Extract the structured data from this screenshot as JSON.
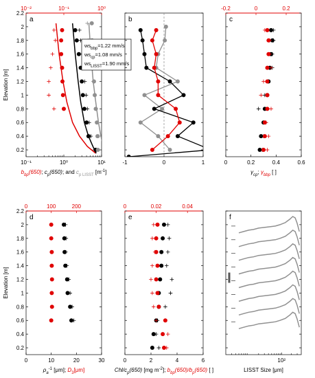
{
  "figure": {
    "y_label": "Elevation [m]",
    "elev_ticks": [
      "0.2",
      "0.4",
      "0.6",
      "0.8",
      "1",
      "1.2",
      "1.4",
      "1.6",
      "1.8",
      "2",
      "2.2"
    ],
    "colors": {
      "black": "#000000",
      "red": "#e00000",
      "gray": "#909090"
    }
  },
  "chart_data": [
    {
      "id": "a",
      "letter": "a",
      "type": "scatter",
      "x_scale": "log",
      "xlim": [
        0.1,
        10
      ],
      "ylim": [
        0.1,
        2.2
      ],
      "xticks": [
        0.1,
        1,
        10
      ],
      "xtick_labels": [
        "10⁻¹",
        "10⁰",
        "10¹"
      ],
      "top_xlim": [
        0.01,
        1
      ],
      "top_xticks": [
        0.01,
        0.1,
        1
      ],
      "top_xtick_labels": [
        "10⁻²",
        "10⁻¹",
        "10⁰"
      ],
      "xlabel": {
        "parts": [
          {
            "t": "b",
            "c": "red",
            "i": true
          },
          {
            "t": "bp",
            "c": "red",
            "i": true,
            "sub": true
          },
          {
            "t": "(650)",
            "c": "red",
            "i": true
          },
          {
            "t": "; ",
            "c": "black"
          },
          {
            "t": "c",
            "c": "black",
            "i": true
          },
          {
            "t": "p",
            "c": "black",
            "i": true,
            "sub": true
          },
          {
            "t": "(650)",
            "c": "black",
            "i": true
          },
          {
            "t": "; and ",
            "c": "black"
          },
          {
            "t": "c",
            "c": "gray",
            "i": true
          },
          {
            "t": "p LISST",
            "c": "gray",
            "sub": true
          },
          {
            "t": " [m",
            "c": "black"
          },
          {
            "t": "-1",
            "c": "black",
            "sup": true
          },
          {
            "t": "]",
            "c": "black"
          }
        ]
      },
      "legend_box": [
        "ws_bbp=1.22 mm/s",
        "ws_cp=1.08 mm/s",
        "ws_LISST=1.90 mm/s"
      ],
      "legend_parts": [
        [
          {
            "t": "ws"
          },
          {
            "t": "bbp",
            "sub": true
          },
          {
            "t": "=1.22 mm/s"
          }
        ],
        [
          {
            "t": "ws"
          },
          {
            "t": "cp",
            "sub": true
          },
          {
            "t": "=1.08 mm/s"
          }
        ],
        [
          {
            "t": "ws"
          },
          {
            "t": "LISST",
            "sub": true
          },
          {
            "t": "=1.90 mm/s"
          }
        ]
      ],
      "series": [
        {
          "color": "red",
          "marker": "dot",
          "y": [
            1.95,
            1.8,
            1.6,
            1.4,
            1.2,
            1.0,
            0.8
          ],
          "x": [
            0.9,
            0.85,
            0.85,
            0.9,
            0.92,
            0.95,
            1.0
          ]
        },
        {
          "color": "red",
          "marker": "plus",
          "y": [
            1.95,
            1.8,
            1.6,
            1.4,
            1.2,
            1.0,
            0.8
          ],
          "x": [
            0.55,
            0.6,
            0.5,
            0.45,
            0.4,
            0.4,
            0.55
          ]
        },
        {
          "color": "black",
          "marker": "dot",
          "y": [
            1.95,
            1.8,
            1.6,
            1.4,
            1.2,
            1.0,
            0.8,
            0.6,
            0.4,
            0.2
          ],
          "x": [
            2.0,
            2.2,
            2.5,
            2.8,
            3.0,
            3.2,
            3.5,
            4.0,
            4.5,
            7.0
          ]
        },
        {
          "color": "black",
          "marker": "plus",
          "y": [
            1.95,
            1.8,
            1.6,
            1.4,
            1.2,
            1.0,
            0.8,
            0.6,
            0.4,
            0.2
          ],
          "x": [
            2.6,
            2.8,
            3.0,
            3.4,
            3.6,
            3.9,
            4.2,
            4.7,
            5.2,
            6.6
          ]
        },
        {
          "color": "gray",
          "marker": "dot",
          "y": [
            2.05,
            1.8,
            1.6,
            1.4,
            1.2,
            1.0,
            0.8,
            0.6,
            0.4,
            0.2
          ],
          "x": [
            5.5,
            5.6,
            5.8,
            6.0,
            6.3,
            6.6,
            7.0,
            7.5,
            7.8,
            8.0
          ]
        },
        {
          "color": "gray",
          "marker": "plus",
          "y": [
            2.05,
            1.8,
            1.6,
            1.4,
            1.2,
            1.0,
            0.8,
            0.6,
            0.4
          ],
          "x": [
            4.2,
            4.4,
            5.0,
            5.4,
            6.0,
            6.6,
            7.2,
            7.8,
            8.5
          ]
        },
        {
          "color": "red",
          "marker": "line",
          "y": [
            2.05,
            1.6,
            1.2,
            0.9,
            0.6,
            0.4,
            0.25,
            0.15
          ],
          "x": [
            0.62,
            0.75,
            0.95,
            1.2,
            1.7,
            2.6,
            4.2,
            7.0
          ]
        },
        {
          "color": "black",
          "marker": "line",
          "y": [
            2.05,
            1.6,
            1.2,
            0.9,
            0.6,
            0.4,
            0.25,
            0.15
          ],
          "x": [
            1.7,
            2.0,
            2.4,
            2.8,
            3.5,
            4.5,
            5.9,
            7.2
          ]
        },
        {
          "color": "gray",
          "marker": "line",
          "y": [
            2.05,
            1.6,
            1.2,
            0.9,
            0.6,
            0.4,
            0.25,
            0.15
          ],
          "x": [
            4.6,
            5.2,
            6.0,
            7.0,
            8.3,
            9.6,
            11.0,
            12.5
          ]
        }
      ]
    },
    {
      "id": "b",
      "letter": "b",
      "type": "line",
      "x_scale": "linear",
      "xlim": [
        -1,
        1
      ],
      "ylim": [
        0.1,
        2.2
      ],
      "xticks": [
        -1,
        0,
        1
      ],
      "xtick_labels": [
        "-1",
        "0",
        "1"
      ],
      "vline": 0,
      "series": [
        {
          "color": "gray",
          "marker": "dot-line",
          "y": [
            2.0,
            1.8,
            1.6,
            1.4,
            1.2,
            1.0,
            0.8,
            0.6,
            0.4,
            0.2
          ],
          "x": [
            0.05,
            0.02,
            -0.15,
            -0.2,
            0.35,
            -0.5,
            -0.05,
            -0.6,
            -0.15,
            0.15
          ]
        },
        {
          "color": "black",
          "marker": "dot-line",
          "y": [
            1.95,
            1.8,
            1.6,
            1.4,
            1.2,
            1.0,
            0.8,
            0.6,
            0.4,
            0.2,
            0.1
          ],
          "x": [
            -0.6,
            -0.55,
            -0.5,
            -0.45,
            0.15,
            0.5,
            -0.25,
            0.75,
            0.35,
            1.2,
            -0.9
          ]
        },
        {
          "color": "red",
          "marker": "dot-line",
          "y": [
            1.95,
            1.8,
            1.6,
            1.4,
            1.2,
            1.0,
            0.8,
            0.6,
            0.4,
            0.2
          ],
          "x": [
            -0.2,
            -0.3,
            -0.2,
            -0.25,
            -0.15,
            -0.15,
            0.3,
            0.4,
            0.1,
            -0.3
          ]
        }
      ]
    },
    {
      "id": "c",
      "letter": "c",
      "type": "scatter",
      "x_scale": "linear",
      "xlim": [
        0,
        0.6
      ],
      "ylim": [
        0.1,
        2.2
      ],
      "xticks": [
        0,
        0.2,
        0.4,
        0.6
      ],
      "xtick_labels": [
        "0",
        "0.2",
        "0.4",
        "0.6"
      ],
      "top_xlim": [
        -0.2,
        0.3
      ],
      "top_xticks": [
        -0.2,
        0,
        0.2
      ],
      "top_xtick_labels": [
        "-0.2",
        "0",
        "0.2"
      ],
      "xlabel": {
        "parts": [
          {
            "t": "γ",
            "c": "black",
            "i": true
          },
          {
            "t": "cp",
            "c": "black",
            "i": true,
            "sub": true
          },
          {
            "t": "; ",
            "c": "black"
          },
          {
            "t": "γ",
            "c": "red",
            "i": true
          },
          {
            "t": "bbp",
            "c": "red",
            "i": true,
            "sub": true
          },
          {
            "t": " [ ]",
            "c": "black"
          }
        ]
      },
      "series": [
        {
          "color": "black",
          "marker": "dot",
          "y": [
            1.95,
            1.8,
            1.6,
            1.4,
            1.2,
            1.0,
            0.8,
            0.6,
            0.4,
            0.2
          ],
          "x": [
            0.36,
            0.37,
            0.36,
            0.35,
            0.34,
            0.33,
            0.31,
            0.3,
            0.28,
            0.27
          ]
        },
        {
          "color": "black",
          "marker": "plus",
          "y": [
            1.95,
            1.8,
            1.6,
            1.4,
            1.2,
            1.0,
            0.8,
            0.6,
            0.4,
            0.2
          ],
          "x": [
            0.38,
            0.38,
            0.37,
            0.37,
            0.33,
            0.31,
            0.26,
            0.32,
            0.3,
            0.29
          ]
        },
        {
          "color": "red",
          "marker": "dot",
          "y": [
            1.95,
            1.8,
            1.6,
            1.4,
            1.2,
            1.0,
            0.8,
            0.6,
            0.4,
            0.2
          ],
          "x": [
            0.33,
            0.34,
            0.34,
            0.33,
            0.33,
            0.33,
            0.33,
            0.31,
            0.31,
            0.3
          ]
        },
        {
          "color": "red",
          "marker": "plus",
          "y": [
            1.95,
            1.8,
            1.6,
            1.4,
            1.2,
            1.0,
            0.8,
            0.6,
            0.4,
            0.2
          ],
          "x": [
            0.31,
            0.35,
            0.35,
            0.36,
            0.3,
            0.28,
            0.36,
            0.32,
            0.34,
            0.33
          ]
        }
      ]
    },
    {
      "id": "d",
      "letter": "d",
      "type": "scatter",
      "x_scale": "linear",
      "xlim": [
        0,
        30
      ],
      "ylim": [
        0.1,
        2.2
      ],
      "xticks": [
        0,
        10,
        20,
        30
      ],
      "xtick_labels": [
        "0",
        "10",
        "20",
        "30"
      ],
      "top_xlim": [
        0,
        300
      ],
      "top_xticks": [
        0,
        100,
        200
      ],
      "top_xtick_labels": [
        "0",
        "100",
        "200"
      ],
      "xlabel": {
        "parts": [
          {
            "t": "ρ",
            "c": "black",
            "i": true
          },
          {
            "t": "a",
            "c": "black",
            "i": true,
            "sub": true
          },
          {
            "t": "-1",
            "c": "black",
            "sup": true
          },
          {
            "t": " [μm]; ",
            "c": "black"
          },
          {
            "t": "D",
            "c": "red",
            "i": true
          },
          {
            "t": "3",
            "c": "red",
            "sub": true
          },
          {
            "t": "[μm]",
            "c": "red"
          }
        ]
      },
      "series": [
        {
          "color": "red",
          "marker": "dot",
          "y": [
            2.0,
            1.8,
            1.6,
            1.4,
            1.2,
            1.0,
            0.8,
            0.6
          ],
          "x": [
            10.0,
            10.0,
            10.2,
            10.2,
            10.3,
            10.2,
            10.3,
            10.0
          ]
        },
        {
          "color": "black",
          "marker": "dot",
          "y": [
            2.0,
            1.8,
            1.6,
            1.4,
            1.2,
            1.0,
            0.8,
            0.6
          ],
          "x": [
            15.0,
            15.2,
            15.3,
            15.6,
            16.3,
            16.5,
            17.5,
            18.0
          ]
        },
        {
          "color": "black",
          "marker": "plus",
          "y": [
            2.0,
            1.8,
            1.6,
            1.4,
            1.2,
            1.0,
            0.8,
            0.6
          ],
          "x": [
            15.7,
            15.9,
            15.8,
            16.2,
            17.0,
            17.5,
            18.3,
            19.0
          ]
        }
      ]
    },
    {
      "id": "e",
      "letter": "e",
      "type": "scatter",
      "x_scale": "linear",
      "xlim": [
        0,
        6
      ],
      "ylim": [
        0.1,
        2.2
      ],
      "xticks": [
        0,
        2,
        4,
        6
      ],
      "xtick_labels": [
        "0",
        "2",
        "4",
        "6"
      ],
      "top_xlim": [
        0,
        0.05
      ],
      "top_xticks": [
        0,
        0.02,
        0.04
      ],
      "top_xtick_labels": [
        "0",
        "0.02",
        "0.04"
      ],
      "xlabel": {
        "parts": [
          {
            "t": "Chl/c",
            "c": "black",
            "i": true
          },
          {
            "t": "p",
            "c": "black",
            "i": true,
            "sub": true
          },
          {
            "t": "(650)",
            "c": "black",
            "i": true
          },
          {
            "t": " [mg m",
            "c": "black"
          },
          {
            "t": "-2",
            "c": "black",
            "sup": true
          },
          {
            "t": "]; ",
            "c": "black"
          },
          {
            "t": "b",
            "c": "red",
            "i": true
          },
          {
            "t": "bp",
            "c": "red",
            "i": true,
            "sub": true
          },
          {
            "t": "(650)/b",
            "c": "red",
            "i": true
          },
          {
            "t": "p",
            "c": "red",
            "i": true,
            "sub": true
          },
          {
            "t": "(650)",
            "c": "red",
            "i": true
          },
          {
            "t": " [ ]",
            "c": "black"
          }
        ]
      },
      "series": [
        {
          "color": "black",
          "marker": "dot",
          "y": [
            2.0,
            1.8,
            1.6,
            1.4,
            1.2,
            1.0,
            0.8,
            0.6,
            0.4,
            0.2
          ],
          "x": [
            3.0,
            2.9,
            2.8,
            2.8,
            2.7,
            2.6,
            2.6,
            2.4,
            2.2,
            2.1
          ]
        },
        {
          "color": "black",
          "marker": "plus",
          "y": [
            2.0,
            1.8,
            1.6,
            1.4,
            1.2,
            1.0,
            0.8,
            0.6,
            0.4,
            0.2
          ],
          "x": [
            3.3,
            3.4,
            3.3,
            3.2,
            3.6,
            3.5,
            3.1,
            2.5,
            2.4,
            2.6
          ]
        },
        {
          "color": "red",
          "marker": "dot",
          "y": [
            2.0,
            1.8,
            1.6,
            1.4,
            1.2,
            1.0,
            0.8,
            0.6,
            0.4,
            0.2
          ],
          "x": [
            2.5,
            2.4,
            2.4,
            2.5,
            2.4,
            2.5,
            2.6,
            3.1,
            2.9,
            3.0
          ]
        },
        {
          "color": "red",
          "marker": "plus",
          "y": [
            2.0,
            1.8,
            1.6,
            1.4,
            1.2,
            1.0,
            0.8,
            0.6,
            0.4,
            0.2
          ],
          "x": [
            2.2,
            2.1,
            2.3,
            2.1,
            2.0,
            2.1,
            2.2,
            2.4,
            3.3,
            3.2
          ]
        }
      ]
    },
    {
      "id": "f",
      "letter": "f",
      "type": "line",
      "x_scale": "log",
      "xlim": [
        2,
        400
      ],
      "ylim": [
        0.1,
        2.2
      ],
      "xticks": [
        100
      ],
      "xtick_labels": [
        "10²"
      ],
      "xlabel": {
        "parts": [
          {
            "t": "LISST Size [μm]",
            "c": "black"
          }
        ]
      },
      "curve_levels": [
        2.0,
        1.8,
        1.6,
        1.4,
        1.2,
        1.0,
        0.8,
        0.6
      ],
      "scale_bar": {
        "y_range": [
          1.15,
          1.3
        ]
      },
      "curve_shape": {
        "size_um": [
          5,
          7,
          10,
          14,
          20,
          30,
          45,
          65,
          90,
          130,
          180,
          220,
          260,
          300,
          350
        ],
        "offset": [
          -0.12,
          -0.1,
          -0.08,
          -0.07,
          -0.05,
          -0.04,
          -0.03,
          -0.02,
          0.0,
          0.03,
          0.08,
          0.12,
          0.1,
          0.02,
          -0.1
        ]
      }
    }
  ]
}
